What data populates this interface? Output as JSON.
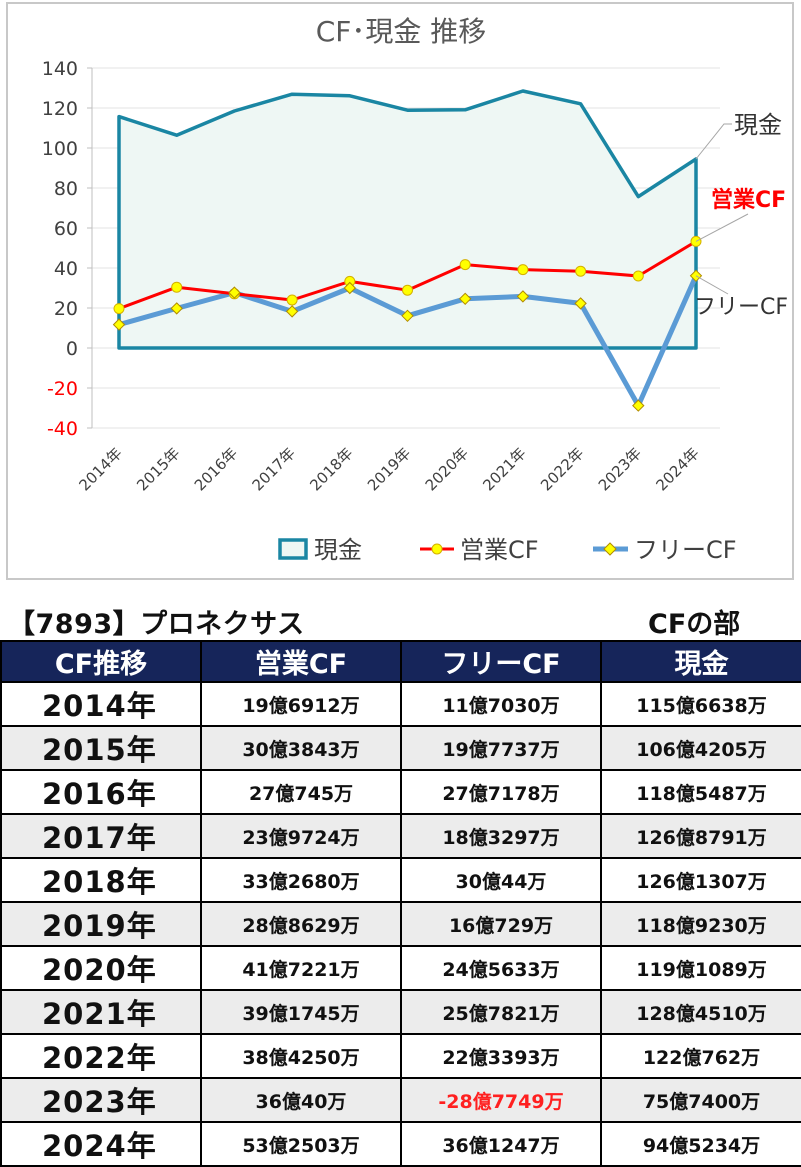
{
  "chart_data": {
    "type": "line",
    "title": "CF･現金 推移",
    "categories": [
      "2014年",
      "2015年",
      "2016年",
      "2017年",
      "2018年",
      "2019年",
      "2020年",
      "2021年",
      "2022年",
      "2023年",
      "2024年"
    ],
    "ylim": [
      -40,
      140
    ],
    "yticks": [
      140,
      120,
      100,
      80,
      60,
      40,
      20,
      0,
      -20,
      -40
    ],
    "grid": true,
    "legend_position": "bottom",
    "series": [
      {
        "name": "現金",
        "style": "area",
        "color": "#1a86a3",
        "values": [
          115.7,
          106.4,
          118.5,
          126.9,
          126.1,
          118.9,
          119.1,
          128.5,
          122.1,
          75.7,
          94.5
        ]
      },
      {
        "name": "営業CF",
        "style": "line",
        "color": "#ff0000",
        "values": [
          19.7,
          30.4,
          27.1,
          24.0,
          33.3,
          28.9,
          41.7,
          39.2,
          38.4,
          36.0,
          53.3
        ]
      },
      {
        "name": "フリーCF",
        "style": "line",
        "color": "#5b9bd5",
        "values": [
          11.7,
          19.8,
          27.7,
          18.3,
          30.0,
          16.1,
          24.6,
          25.8,
          22.3,
          -28.8,
          36.1
        ]
      }
    ],
    "annotations": [
      {
        "text": "現金",
        "series": "現金",
        "color": "#333333"
      },
      {
        "text": "営業CF",
        "series": "営業CF",
        "color": "#ff0000"
      },
      {
        "text": "フリーCF",
        "series": "フリーCF",
        "color": "#333333"
      }
    ]
  },
  "company_label": "【7893】プロネクサス",
  "section_label": "CFの部",
  "table": {
    "headers": [
      "CF推移",
      "営業CF",
      "フリーCF",
      "現金"
    ],
    "rows": [
      {
        "year": "2014年",
        "op": "19億6912万",
        "free": "11億7030万",
        "cash": "115億6638万"
      },
      {
        "year": "2015年",
        "op": "30億3843万",
        "free": "19億7737万",
        "cash": "106億4205万"
      },
      {
        "year": "2016年",
        "op": "27億745万",
        "free": "27億7178万",
        "cash": "118億5487万"
      },
      {
        "year": "2017年",
        "op": "23億9724万",
        "free": "18億3297万",
        "cash": "126億8791万"
      },
      {
        "year": "2018年",
        "op": "33億2680万",
        "free": "30億44万",
        "cash": "126億1307万"
      },
      {
        "year": "2019年",
        "op": "28億8629万",
        "free": "16億729万",
        "cash": "118億9230万"
      },
      {
        "year": "2020年",
        "op": "41億7221万",
        "free": "24億5633万",
        "cash": "119億1089万"
      },
      {
        "year": "2021年",
        "op": "39億1745万",
        "free": "25億7821万",
        "cash": "128億4510万"
      },
      {
        "year": "2022年",
        "op": "38億4250万",
        "free": "22億3393万",
        "cash": "122億762万"
      },
      {
        "year": "2023年",
        "op": "36億40万",
        "free": "-28億7749万",
        "cash": "75億7400万"
      },
      {
        "year": "2024年",
        "op": "53億2503万",
        "free": "36億1247万",
        "cash": "94億5234万"
      }
    ]
  }
}
